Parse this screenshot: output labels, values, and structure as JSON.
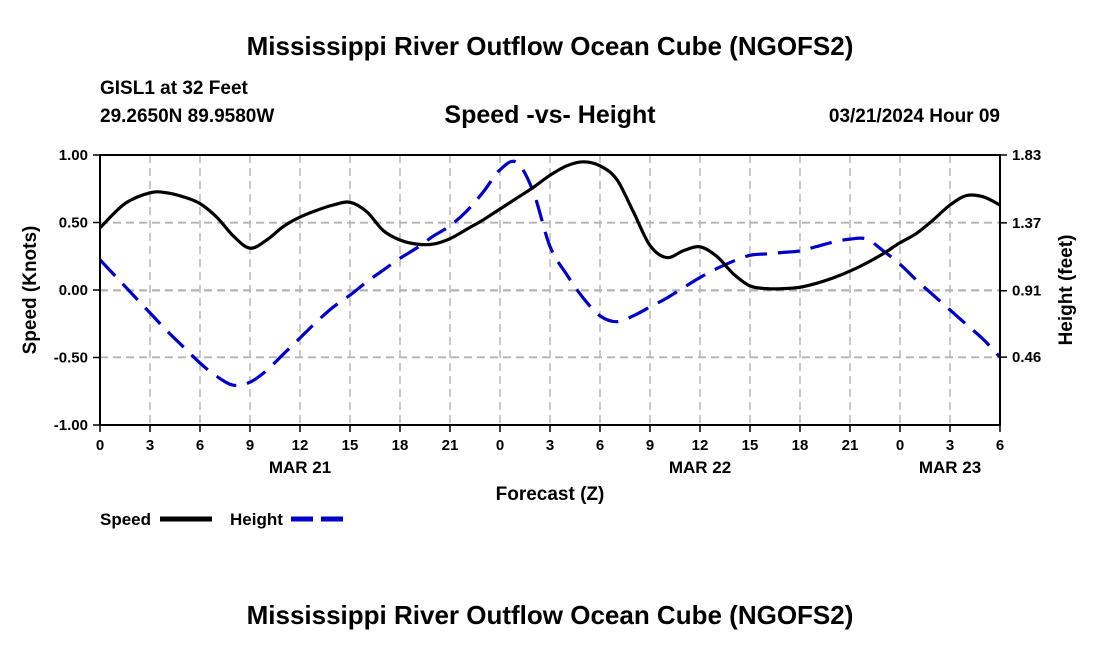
{
  "header": {
    "title": "Mississippi River Outflow Ocean Cube (NGOFS2)",
    "station": "GISL1 at 32 Feet",
    "coords": "29.2650N  89.9580W",
    "date": "03/21/2024 Hour 09"
  },
  "footer": {
    "title": "Mississippi River Outflow Ocean Cube (NGOFS2)"
  },
  "chart_data": {
    "type": "line",
    "title": "Speed -vs- Height",
    "xlabel": "Forecast (Z)",
    "ylabel": "Speed (Knots)",
    "y2label": "Height (feet)",
    "x_range_hours": [
      0,
      54
    ],
    "x_ticks": [
      {
        "h": 0,
        "label": "0"
      },
      {
        "h": 3,
        "label": "3"
      },
      {
        "h": 6,
        "label": "6"
      },
      {
        "h": 9,
        "label": "9"
      },
      {
        "h": 12,
        "label": "12"
      },
      {
        "h": 15,
        "label": "15"
      },
      {
        "h": 18,
        "label": "18"
      },
      {
        "h": 21,
        "label": "21"
      },
      {
        "h": 24,
        "label": "0"
      },
      {
        "h": 27,
        "label": "3"
      },
      {
        "h": 30,
        "label": "6"
      },
      {
        "h": 33,
        "label": "9"
      },
      {
        "h": 36,
        "label": "12"
      },
      {
        "h": 39,
        "label": "15"
      },
      {
        "h": 42,
        "label": "18"
      },
      {
        "h": 45,
        "label": "21"
      },
      {
        "h": 48,
        "label": "0"
      },
      {
        "h": 51,
        "label": "3"
      },
      {
        "h": 54,
        "label": "6"
      }
    ],
    "date_labels": [
      {
        "h": 12,
        "label": "MAR 21"
      },
      {
        "h": 36,
        "label": "MAR 22"
      },
      {
        "h": 51,
        "label": "MAR 23"
      }
    ],
    "ylim": [
      -1.0,
      1.0
    ],
    "y_ticks": [
      {
        "v": 1.0,
        "label": "1.00"
      },
      {
        "v": 0.5,
        "label": "0.50"
      },
      {
        "v": 0.0,
        "label": "0.00"
      },
      {
        "v": -0.5,
        "label": "-0.50"
      },
      {
        "v": -1.0,
        "label": "-1.00"
      }
    ],
    "y2lim": [
      0.0,
      1.83
    ],
    "y2_ticks": [
      {
        "v": 1.83,
        "label": "1.83"
      },
      {
        "v": 1.37,
        "label": "1.37"
      },
      {
        "v": 0.91,
        "label": "0.91"
      },
      {
        "v": 0.46,
        "label": "0.46"
      }
    ],
    "series": [
      {
        "name": "Speed",
        "axis": "left",
        "color": "#000000",
        "dash": "",
        "x": [
          0,
          1.5,
          3,
          4,
          5,
          6,
          7,
          8,
          9,
          10,
          11,
          12,
          13,
          14,
          15,
          16,
          17,
          18,
          19,
          20,
          21,
          22,
          23,
          24,
          25,
          26,
          27,
          28,
          29,
          30,
          31,
          32,
          33,
          34,
          35,
          36,
          37,
          38,
          39,
          40,
          41,
          42,
          43,
          44,
          45,
          46,
          47,
          48,
          49,
          50,
          51,
          52,
          53,
          54
        ],
        "values": [
          0.46,
          0.64,
          0.72,
          0.72,
          0.69,
          0.64,
          0.54,
          0.4,
          0.31,
          0.37,
          0.47,
          0.54,
          0.59,
          0.63,
          0.65,
          0.58,
          0.44,
          0.37,
          0.34,
          0.34,
          0.38,
          0.45,
          0.52,
          0.6,
          0.68,
          0.76,
          0.85,
          0.92,
          0.95,
          0.92,
          0.82,
          0.58,
          0.33,
          0.24,
          0.29,
          0.32,
          0.25,
          0.12,
          0.03,
          0.01,
          0.01,
          0.02,
          0.05,
          0.09,
          0.14,
          0.2,
          0.27,
          0.35,
          0.42,
          0.52,
          0.63,
          0.7,
          0.69,
          0.63
        ]
      },
      {
        "name": "Height",
        "axis": "right",
        "color": "#0000cc",
        "dash": "22,11",
        "x": [
          0,
          1,
          2,
          3,
          4,
          5,
          6,
          7,
          8,
          9,
          10,
          11,
          12,
          13,
          14,
          15,
          16,
          17,
          18,
          19,
          20,
          21,
          22,
          23,
          24,
          25,
          26,
          27,
          28,
          29,
          30,
          31,
          32,
          33,
          34,
          35,
          36,
          37,
          38,
          39,
          40,
          41,
          42,
          43,
          44,
          45,
          46,
          47,
          48,
          49,
          50,
          51,
          52,
          53,
          54
        ],
        "values": [
          1.12,
          1.0,
          0.88,
          0.76,
          0.64,
          0.53,
          0.42,
          0.33,
          0.27,
          0.29,
          0.37,
          0.48,
          0.59,
          0.7,
          0.8,
          0.88,
          0.97,
          1.05,
          1.13,
          1.2,
          1.28,
          1.35,
          1.45,
          1.58,
          1.73,
          1.78,
          1.58,
          1.21,
          1.02,
          0.86,
          0.74,
          0.7,
          0.74,
          0.8,
          0.86,
          0.93,
          1.0,
          1.06,
          1.11,
          1.15,
          1.16,
          1.17,
          1.18,
          1.21,
          1.24,
          1.26,
          1.26,
          1.18,
          1.09,
          0.98,
          0.88,
          0.78,
          0.68,
          0.58,
          0.46
        ]
      }
    ]
  }
}
